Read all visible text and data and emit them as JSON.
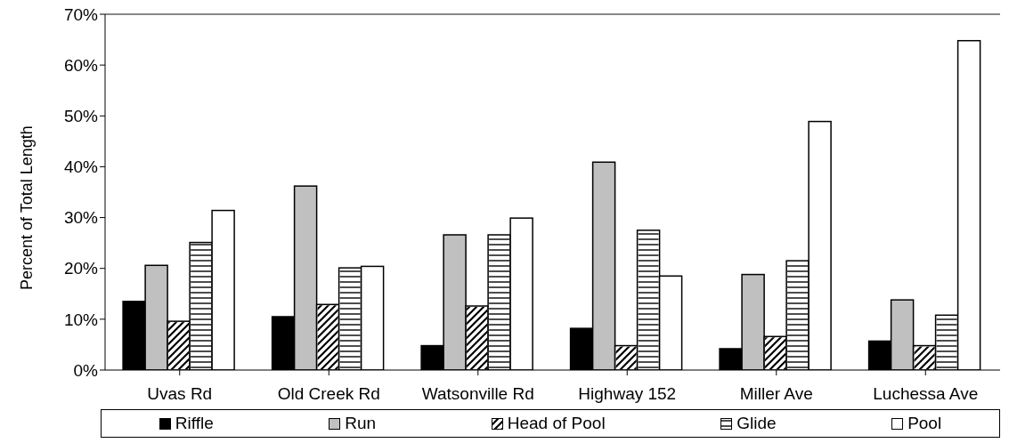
{
  "chart_data": {
    "type": "bar",
    "ylabel": "Percent of Total Length",
    "categories": [
      "Uvas Rd",
      "Old Creek Rd",
      "Watsonville Rd",
      "Highway 152",
      "Miller Ave",
      "Luchessa Ave"
    ],
    "series": [
      {
        "name": "Riffle",
        "color": "#000000",
        "values": [
          13.5,
          10.5,
          4.8,
          8.2,
          4.2,
          5.7
        ]
      },
      {
        "name": "Run",
        "color": "#c0c0c0",
        "values": [
          20.6,
          36.2,
          26.6,
          40.9,
          18.8,
          13.8
        ]
      },
      {
        "name": "Head of Pool",
        "color": "#ffffff",
        "values": [
          9.6,
          12.9,
          12.6,
          4.8,
          6.6,
          4.8
        ]
      },
      {
        "name": "Glide",
        "color": "#ffffff",
        "values": [
          25.1,
          20.1,
          26.6,
          27.5,
          21.5,
          10.8
        ]
      },
      {
        "name": "Pool",
        "color": "#ffffff",
        "values": [
          31.4,
          20.4,
          29.9,
          18.5,
          48.9,
          64.8
        ]
      }
    ],
    "ylim": [
      0,
      70
    ],
    "yticks": [
      {
        "value": 0,
        "label": "0%"
      },
      {
        "value": 10,
        "label": "10%"
      },
      {
        "value": 20,
        "label": "20%"
      },
      {
        "value": 30,
        "label": "30%"
      },
      {
        "value": 40,
        "label": "40%"
      },
      {
        "value": 50,
        "label": "50%"
      },
      {
        "value": 60,
        "label": "60%"
      },
      {
        "value": 70,
        "label": "70%"
      }
    ],
    "grid": false,
    "legend": "bottom"
  }
}
